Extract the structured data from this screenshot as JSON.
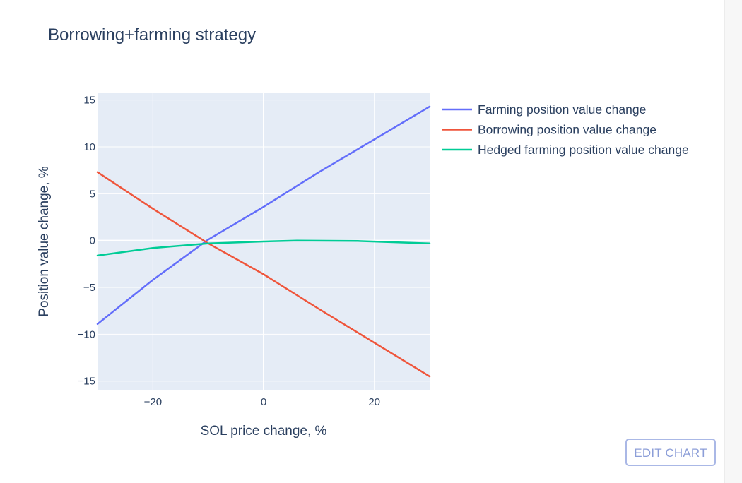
{
  "toolbar": {
    "edit_chart_label": "EDIT CHART"
  },
  "colors": {
    "plot_background": "#e5ecf6",
    "grid": "#ffffff",
    "text": "#2a3f5f",
    "farming": "#636efa",
    "borrowing": "#ef553b",
    "hedged": "#00cc96"
  },
  "chart_data": {
    "type": "line",
    "title": "Borrowing+farming strategy",
    "xlabel": "SOL price change, %",
    "ylabel": "Position value change, %",
    "xlim": [
      -30,
      30
    ],
    "ylim": [
      -16,
      15.8
    ],
    "xticks": [
      -20,
      0,
      20
    ],
    "xtick_labels": [
      "−20",
      "0",
      "20"
    ],
    "yticks": [
      -15,
      -10,
      -5,
      0,
      5,
      10,
      15
    ],
    "ytick_labels": [
      "−15",
      "−10",
      "−5",
      "0",
      "5",
      "10",
      "15"
    ],
    "grid": true,
    "legend_position": "top-right-outside",
    "series": [
      {
        "name": "Farming position value change",
        "color": "#636efa",
        "x": [
          -30,
          -20,
          -10,
          0,
          10,
          20,
          30
        ],
        "y": [
          -8.9,
          -4.2,
          0.1,
          3.6,
          7.3,
          10.8,
          14.3
        ]
      },
      {
        "name": "Borrowing position value change",
        "color": "#ef553b",
        "x": [
          -30,
          -20,
          -10,
          0,
          10,
          20,
          30
        ],
        "y": [
          7.3,
          3.4,
          -0.3,
          -3.6,
          -7.3,
          -10.9,
          -14.5
        ]
      },
      {
        "name": "Hedged farming position value change",
        "color": "#00cc96",
        "x": [
          -30,
          -20,
          -10,
          0,
          6,
          17,
          30
        ],
        "y": [
          -1.6,
          -0.8,
          -0.3,
          -0.1,
          0.0,
          -0.05,
          -0.3
        ]
      }
    ]
  }
}
